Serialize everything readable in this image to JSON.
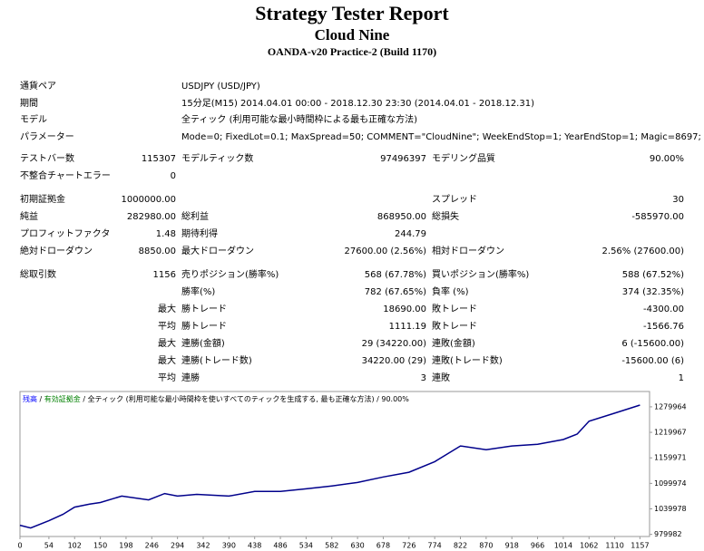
{
  "header": {
    "title": "Strategy Tester Report",
    "subtitle": "Cloud Nine",
    "server": "OANDA-v20 Practice-2 (Build 1170)"
  },
  "table": {
    "rows": [
      [
        "通貨ペア",
        "USDJPY (USD/JPY)"
      ],
      [
        "期間",
        "15分足(M15) 2014.04.01 00:00 - 2018.12.30 23:30 (2014.04.01 - 2018.12.31)"
      ],
      [
        "モデル",
        "全ティック (利用可能な最小時間枠による最も正確な方法)"
      ],
      [
        "パラメーター",
        "Mode=0; FixedLot=0.1; MaxSpread=50; COMMENT=\"CloudNine\"; WeekEndStop=1; YearEndStop=1; Magic=8697;"
      ],
      [
        "テストバー数",
        "115307",
        "モデルティック数",
        "97496397",
        "モデリング品質",
        "90.00%"
      ],
      [
        "不整合チャートエラー",
        "0",
        null,
        null,
        null,
        null
      ],
      [
        "初期証拠金",
        "1000000.00",
        null,
        null,
        "スプレッド",
        "30"
      ],
      [
        "純益",
        "282980.00",
        "総利益",
        "868950.00",
        "総損失",
        "-585970.00"
      ],
      [
        "プロフィットファクタ",
        "1.48",
        "期待利得",
        "244.79",
        null,
        null
      ],
      [
        "絶対ドローダウン",
        "8850.00",
        "最大ドローダウン",
        "27600.00 (2.56%)",
        "相対ドローダウン",
        "2.56% (27600.00)"
      ],
      [
        "総取引数",
        "1156",
        "売りポジション(勝率%)",
        "568 (67.78%)",
        "買いポジション(勝率%)",
        "588 (67.52%)"
      ],
      [
        null,
        null,
        "勝率(%)",
        "782 (67.65%)",
        "負率 (%)",
        "374 (32.35%)"
      ],
      [
        null,
        "最大",
        "勝トレード",
        "18690.00",
        "敗トレード",
        "-4300.00"
      ],
      [
        null,
        "平均",
        "勝トレード",
        "1111.19",
        "敗トレード",
        "-1566.76"
      ],
      [
        null,
        "最大",
        "連勝(金額)",
        "29 (34220.00)",
        "連敗(金額)",
        "6 (-15600.00)"
      ],
      [
        null,
        "最大",
        "連勝(トレード数)",
        "34220.00 (29)",
        "連敗(トレード数)",
        "-15600.00 (6)"
      ],
      [
        null,
        "平均",
        "連勝",
        "3",
        "連敗",
        "1"
      ]
    ]
  },
  "chart_data": {
    "type": "line",
    "legend": [
      {
        "text": "残高",
        "color": "#0000ff"
      },
      {
        "text": " / ",
        "color": "#000000"
      },
      {
        "text": "有効証拠金",
        "color": "#008000"
      },
      {
        "text": " / 全ティック (利用可能な最小時間枠を使いすべてのティックを生成する, 最も正確な方法) / 90.00%",
        "color": "#000000"
      }
    ],
    "x": [
      0,
      20,
      54,
      80,
      102,
      130,
      150,
      190,
      240,
      270,
      294,
      330,
      390,
      438,
      486,
      534,
      582,
      630,
      678,
      726,
      774,
      822,
      870,
      918,
      966,
      1014,
      1040,
      1062,
      1110,
      1157
    ],
    "series": [
      {
        "color": "#00008b",
        "values": [
          1001400,
          995000,
          1012000,
          1027000,
          1044000,
          1051000,
          1055000,
          1070000,
          1061000,
          1076000,
          1070000,
          1074000,
          1070000,
          1081000,
          1081000,
          1087000,
          1094000,
          1102000,
          1115000,
          1126000,
          1151000,
          1188000,
          1179000,
          1188000,
          1192000,
          1203000,
          1216000,
          1246000,
          1265000,
          1284000
        ]
      }
    ],
    "xlim": [
      0,
      1175
    ],
    "ylim": [
      975000,
      1316000
    ],
    "xticks": [
      0,
      54,
      102,
      150,
      198,
      246,
      294,
      342,
      390,
      438,
      486,
      534,
      582,
      630,
      678,
      726,
      774,
      822,
      870,
      918,
      966,
      1014,
      1062,
      1110,
      1157
    ],
    "yticks": [
      979982,
      1039978,
      1099974,
      1159971,
      1219967,
      1279964
    ]
  }
}
